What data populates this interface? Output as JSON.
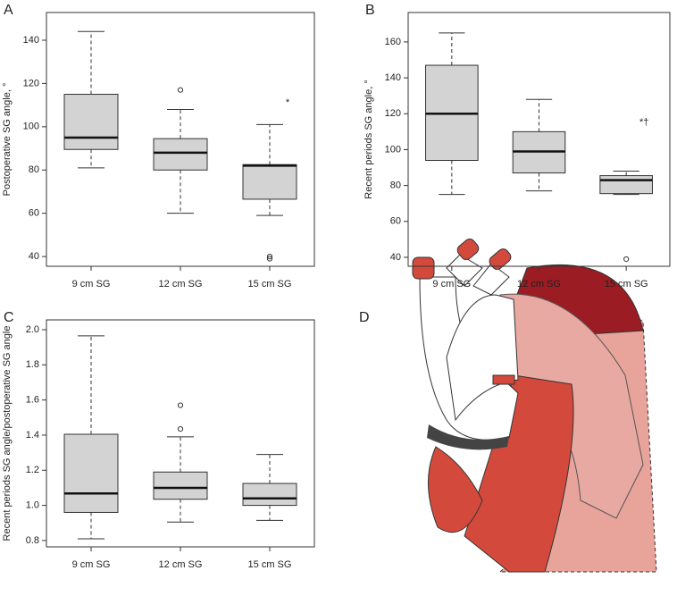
{
  "chart_data": [
    {
      "type": "box",
      "panel": "A",
      "ylabel": "Postoperative SG angle, °",
      "categories": [
        "9 cm SG",
        "12 cm SG",
        "15 cm SG"
      ],
      "boxes": [
        {
          "whisker_low": 81,
          "q1": 89.5,
          "median": 95,
          "q3": 115,
          "whisker_high": 144,
          "outliers": []
        },
        {
          "whisker_low": 60,
          "q1": 80,
          "median": 88,
          "q3": 94.5,
          "whisker_high": 108,
          "outliers": [
            117
          ]
        },
        {
          "whisker_low": 59,
          "q1": 66.5,
          "median": 82,
          "q3": 82.5,
          "whisker_high": 101,
          "outliers": [
            40,
            39
          ]
        }
      ],
      "annotations": [
        {
          "text": "*",
          "x": "15 cm SG",
          "y": 111
        }
      ],
      "color": "#d3d3d3",
      "ylim": [
        35.5,
        152.8
      ],
      "yticks": [
        40,
        60,
        80,
        100,
        120,
        140
      ]
    },
    {
      "type": "box",
      "panel": "B",
      "ylabel": "Recent periods SG angle, °",
      "categories": [
        "9 cm SG",
        "12 cm SG",
        "15 cm SG"
      ],
      "boxes": [
        {
          "whisker_low": 75,
          "q1": 94,
          "median": 120,
          "q3": 147,
          "whisker_high": 165,
          "outliers": []
        },
        {
          "whisker_low": 77,
          "q1": 87,
          "median": 99,
          "q3": 110,
          "whisker_high": 128,
          "outliers": []
        },
        {
          "whisker_low": 75,
          "q1": 75.5,
          "median": 83,
          "q3": 85.5,
          "whisker_high": 88,
          "outliers": [
            39
          ]
        }
      ],
      "annotations": [
        {
          "text": "*†",
          "x": "15 cm SG",
          "y": 115
        }
      ],
      "color": "#d3d3d3",
      "ylim": [
        35,
        176.4
      ],
      "yticks": [
        40,
        60,
        80,
        100,
        120,
        140,
        160
      ]
    },
    {
      "type": "box",
      "panel": "C",
      "ylabel": "Recent periods SG angle/postoperative SG angle",
      "categories": [
        "9 cm SG",
        "12 cm SG",
        "15 cm SG"
      ],
      "boxes": [
        {
          "whisker_low": 0.81,
          "q1": 0.96,
          "median": 1.068,
          "q3": 1.405,
          "whisker_high": 1.965,
          "outliers": []
        },
        {
          "whisker_low": 0.905,
          "q1": 1.035,
          "median": 1.1,
          "q3": 1.19,
          "whisker_high": 1.39,
          "outliers": [
            1.57,
            1.435
          ]
        },
        {
          "whisker_low": 0.915,
          "q1": 1.0,
          "median": 1.04,
          "q3": 1.125,
          "whisker_high": 1.29,
          "outliers": []
        }
      ],
      "annotations": [],
      "color": "#d3d3d3",
      "ylim": [
        0.764,
        2.056
      ],
      "yticks": [
        {
          "value": 0.8,
          "label": "0.8"
        },
        {
          "value": 1.0,
          "label": "1.0"
        },
        {
          "value": 1.2,
          "label": "1.2"
        },
        {
          "value": 1.4,
          "label": "1.4"
        },
        {
          "value": 1.6,
          "label": "1.6"
        },
        {
          "value": 1.8,
          "label": "1.8"
        },
        {
          "value": 2.0,
          "label": "2.0"
        }
      ]
    }
  ],
  "illustration": {
    "panel": "D"
  }
}
